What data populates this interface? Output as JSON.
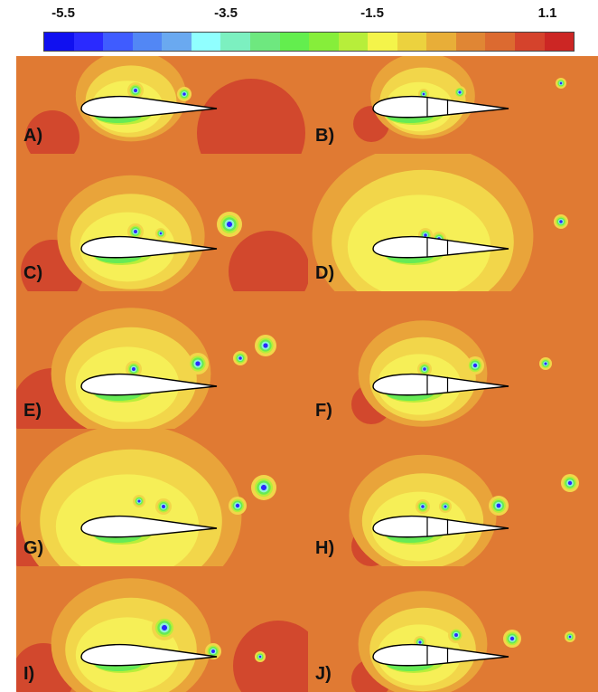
{
  "colorbar": {
    "tick_labels": [
      "-5.5",
      "-3.5",
      "-1.5",
      "1.1"
    ],
    "colors": [
      "#1010f0",
      "#2a2aff",
      "#3f5cff",
      "#5287f5",
      "#6aa9f0",
      "#90ffff",
      "#7cf0c0",
      "#6ee87f",
      "#63ee4e",
      "#86ee3a",
      "#b7ee3a",
      "#f4f44a",
      "#ecd23e",
      "#e8ae38",
      "#e08634",
      "#dc6a30",
      "#d5432c",
      "#cc2624"
    ]
  },
  "panels": [
    {
      "label": "A)",
      "variant": "baseline"
    },
    {
      "label": "B)",
      "variant": "split"
    },
    {
      "label": "C)",
      "variant": "baseline"
    },
    {
      "label": "D)",
      "variant": "split"
    },
    {
      "label": "E)",
      "variant": "baseline"
    },
    {
      "label": "F)",
      "variant": "split"
    },
    {
      "label": "G)",
      "variant": "baseline"
    },
    {
      "label": "H)",
      "variant": "split"
    },
    {
      "label": "I)",
      "variant": "baseline"
    },
    {
      "label": "J)",
      "variant": "split"
    }
  ]
}
